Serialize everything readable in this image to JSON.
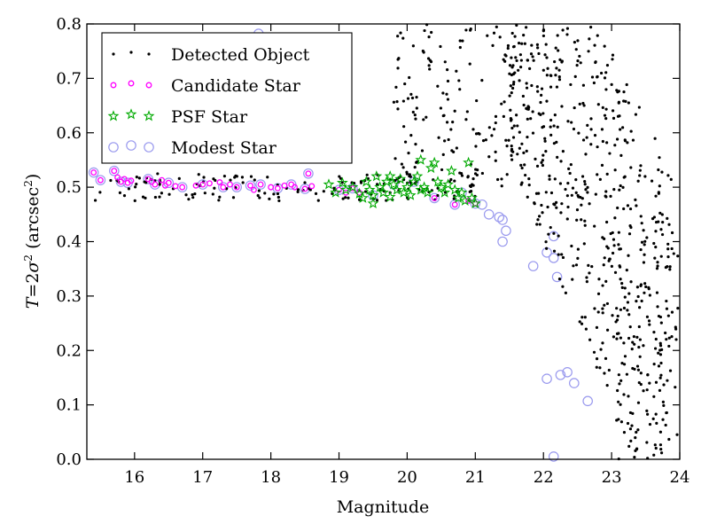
{
  "chart_data": {
    "type": "scatter",
    "xlabel": "Magnitude",
    "ylabel_parts": {
      "var": "T",
      "eq": "=2",
      "sigma": "σ",
      "sup": "2",
      "open": " (arcsec",
      "close": ")"
    },
    "xlim": [
      15.3,
      24.0
    ],
    "ylim": [
      0.0,
      0.8
    ],
    "xticks": [
      16,
      17,
      18,
      19,
      20,
      21,
      22,
      23,
      24
    ],
    "yticks": [
      0.0,
      0.1,
      0.2,
      0.3,
      0.4,
      0.5,
      0.6,
      0.7,
      0.8
    ],
    "xtick_labels": [
      "16",
      "17",
      "18",
      "19",
      "20",
      "21",
      "22",
      "23",
      "24"
    ],
    "ytick_labels": [
      "0.0",
      "0.1",
      "0.2",
      "0.3",
      "0.4",
      "0.5",
      "0.6",
      "0.7",
      "0.8"
    ],
    "legend_position": "top-left",
    "grid": false,
    "series": [
      {
        "name": "Detected Object",
        "marker": "dot",
        "color": "#000000",
        "generated": {
          "dense_cloud": {
            "n": 520,
            "x": [
              21.5,
              23.9
            ],
            "y": [
              0.02,
              0.8
            ]
          },
          "sparse_cloud": {
            "n": 150,
            "x": [
              19.8,
              21.6
            ],
            "y": [
              0.5,
              0.8
            ]
          },
          "locus": {
            "n": 150,
            "x": [
              15.4,
              21.0
            ],
            "y_center": 0.5,
            "y_spread": 0.025
          },
          "right_edge": {
            "n": 70,
            "x": [
              23.0,
              24.0
            ],
            "y": [
              0.0,
              0.45
            ]
          }
        }
      },
      {
        "name": "Candidate Star",
        "marker": "circle",
        "color": "#ff00ff",
        "points": [
          [
            15.4,
            0.527
          ],
          [
            15.5,
            0.513
          ],
          [
            15.7,
            0.53
          ],
          [
            15.75,
            0.518
          ],
          [
            15.8,
            0.51
          ],
          [
            15.85,
            0.515
          ],
          [
            15.9,
            0.508
          ],
          [
            15.95,
            0.512
          ],
          [
            16.2,
            0.515
          ],
          [
            16.25,
            0.51
          ],
          [
            16.3,
            0.505
          ],
          [
            16.4,
            0.513
          ],
          [
            16.45,
            0.503
          ],
          [
            16.5,
            0.508
          ],
          [
            16.6,
            0.502
          ],
          [
            16.7,
            0.5
          ],
          [
            16.9,
            0.503
          ],
          [
            17.0,
            0.505
          ],
          [
            17.1,
            0.507
          ],
          [
            17.25,
            0.509
          ],
          [
            17.3,
            0.5
          ],
          [
            17.4,
            0.505
          ],
          [
            17.5,
            0.5
          ],
          [
            17.7,
            0.503
          ],
          [
            17.75,
            0.495
          ],
          [
            17.85,
            0.505
          ],
          [
            18.0,
            0.5
          ],
          [
            18.1,
            0.498
          ],
          [
            18.2,
            0.503
          ],
          [
            18.3,
            0.505
          ],
          [
            18.35,
            0.5
          ],
          [
            18.5,
            0.497
          ],
          [
            18.6,
            0.502
          ],
          [
            18.55,
            0.525
          ],
          [
            19.0,
            0.495
          ],
          [
            19.1,
            0.49
          ],
          [
            19.2,
            0.498
          ],
          [
            19.3,
            0.49
          ],
          [
            20.4,
            0.48
          ],
          [
            20.7,
            0.468
          ],
          [
            20.9,
            0.475
          ],
          [
            21.0,
            0.47
          ]
        ]
      },
      {
        "name": "PSF Star",
        "marker": "star",
        "color": "#00aa00",
        "points": [
          [
            18.85,
            0.505
          ],
          [
            18.95,
            0.49
          ],
          [
            19.05,
            0.508
          ],
          [
            19.1,
            0.495
          ],
          [
            19.2,
            0.5
          ],
          [
            19.3,
            0.488
          ],
          [
            19.35,
            0.48
          ],
          [
            19.4,
            0.51
          ],
          [
            19.45,
            0.495
          ],
          [
            19.5,
            0.485
          ],
          [
            19.55,
            0.52
          ],
          [
            19.6,
            0.5
          ],
          [
            19.65,
            0.49
          ],
          [
            19.7,
            0.51
          ],
          [
            19.75,
            0.482
          ],
          [
            19.8,
            0.505
          ],
          [
            19.85,
            0.495
          ],
          [
            19.9,
            0.515
          ],
          [
            19.95,
            0.49
          ],
          [
            20.0,
            0.5
          ],
          [
            20.05,
            0.485
          ],
          [
            20.1,
            0.51
          ],
          [
            20.15,
            0.52
          ],
          [
            20.2,
            0.495
          ],
          [
            20.25,
            0.5
          ],
          [
            20.3,
            0.49
          ],
          [
            20.35,
            0.535
          ],
          [
            20.4,
            0.545
          ],
          [
            20.45,
            0.51
          ],
          [
            20.5,
            0.5
          ],
          [
            20.55,
            0.49
          ],
          [
            20.6,
            0.505
          ],
          [
            20.65,
            0.53
          ],
          [
            20.7,
            0.495
          ],
          [
            20.75,
            0.48
          ],
          [
            20.8,
            0.49
          ],
          [
            20.85,
            0.475
          ],
          [
            20.9,
            0.545
          ],
          [
            20.95,
            0.48
          ],
          [
            21.0,
            0.47
          ],
          [
            20.2,
            0.55
          ],
          [
            19.75,
            0.52
          ],
          [
            19.5,
            0.47
          ]
        ]
      },
      {
        "name": "Modest Star",
        "marker": "ring",
        "color": "#9999ee",
        "points": [
          [
            15.4,
            0.527
          ],
          [
            15.5,
            0.513
          ],
          [
            15.7,
            0.53
          ],
          [
            15.8,
            0.51
          ],
          [
            15.9,
            0.508
          ],
          [
            16.2,
            0.515
          ],
          [
            16.3,
            0.505
          ],
          [
            16.5,
            0.508
          ],
          [
            16.7,
            0.5
          ],
          [
            17.0,
            0.505
          ],
          [
            17.3,
            0.5
          ],
          [
            17.5,
            0.5
          ],
          [
            17.7,
            0.503
          ],
          [
            17.85,
            0.505
          ],
          [
            18.1,
            0.498
          ],
          [
            18.3,
            0.505
          ],
          [
            18.5,
            0.497
          ],
          [
            18.55,
            0.525
          ],
          [
            17.82,
            0.782
          ],
          [
            19.0,
            0.495
          ],
          [
            19.2,
            0.498
          ],
          [
            19.5,
            0.485
          ],
          [
            19.8,
            0.505
          ],
          [
            20.1,
            0.51
          ],
          [
            20.4,
            0.48
          ],
          [
            20.7,
            0.468
          ],
          [
            20.8,
            0.49
          ],
          [
            21.0,
            0.47
          ],
          [
            21.1,
            0.468
          ],
          [
            21.2,
            0.45
          ],
          [
            21.35,
            0.445
          ],
          [
            21.4,
            0.44
          ],
          [
            21.45,
            0.42
          ],
          [
            21.4,
            0.4
          ],
          [
            21.85,
            0.355
          ],
          [
            22.05,
            0.38
          ],
          [
            22.15,
            0.37
          ],
          [
            22.2,
            0.335
          ],
          [
            22.15,
            0.41
          ],
          [
            22.05,
            0.148
          ],
          [
            22.25,
            0.155
          ],
          [
            22.35,
            0.16
          ],
          [
            22.45,
            0.14
          ],
          [
            22.65,
            0.107
          ],
          [
            22.15,
            0.005
          ]
        ]
      }
    ]
  }
}
